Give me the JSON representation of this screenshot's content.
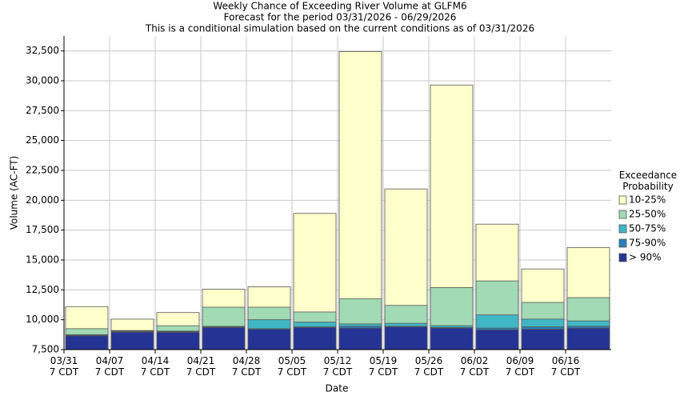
{
  "chart_data": {
    "type": "bar",
    "title": "Weekly Chance of Exceeding River Volume at GLFM6",
    "subtitle": "Forecast for the period 03/31/2026 - 06/29/2026",
    "subtitle2": "This is a conditional simulation based on the current conditions as of 03/31/2026",
    "x_label": "Date",
    "y_label": "Volume (AC-FT)",
    "legend_title": "Exceedance\nProbability",
    "legend_position": "right",
    "grid": true,
    "categories": [
      "03/31\n7 CDT",
      "04/07\n7 CDT",
      "04/14\n7 CDT",
      "04/21\n7 CDT",
      "04/28\n7 CDT",
      "05/05\n7 CDT",
      "05/12\n7 CDT",
      "05/19\n7 CDT",
      "05/26\n7 CDT",
      "06/02\n7 CDT",
      "06/09\n7 CDT",
      "06/16\n7 CDT"
    ],
    "series": [
      {
        "name": "10-25%",
        "color": "#ffffcc",
        "values": [
          11100,
          10050,
          10600,
          12550,
          12750,
          18900,
          32450,
          20950,
          29650,
          18000,
          14250,
          16050
        ]
      },
      {
        "name": "25-50%",
        "color": "#a1dab4",
        "values": [
          9250,
          9100,
          9500,
          11050,
          11050,
          10650,
          11750,
          11200,
          12700,
          13250,
          11450,
          11850
        ]
      },
      {
        "name": "50-75%",
        "color": "#41b6c4",
        "values": [
          8750,
          9050,
          9050,
          9450,
          10000,
          9800,
          9650,
          9700,
          9500,
          10400,
          10050,
          9900
        ]
      },
      {
        "name": "75-90%",
        "color": "#2c7fb8",
        "values": [
          8700,
          9000,
          9000,
          9400,
          9250,
          9400,
          9450,
          9450,
          9350,
          9300,
          9400,
          9450
        ]
      },
      {
        "name": "> 90%",
        "color": "#253494",
        "values": [
          8650,
          8950,
          8950,
          9350,
          9200,
          9350,
          9300,
          9400,
          9300,
          9150,
          9200,
          9300
        ]
      }
    ],
    "ylim": [
      7500,
      33750
    ],
    "yticks": [
      {
        "value": 7500,
        "label": "7,500"
      },
      {
        "value": 10000,
        "label": "10,000"
      },
      {
        "value": 12500,
        "label": "12,500"
      },
      {
        "value": 15000,
        "label": "15,000"
      },
      {
        "value": 17500,
        "label": "17,500"
      },
      {
        "value": 20000,
        "label": "20,000"
      },
      {
        "value": 22500,
        "label": "22,500"
      },
      {
        "value": 25000,
        "label": "25,000"
      },
      {
        "value": 27500,
        "label": "27,500"
      },
      {
        "value": 30000,
        "label": "30,000"
      },
      {
        "value": 32500,
        "label": "32,500"
      }
    ]
  }
}
